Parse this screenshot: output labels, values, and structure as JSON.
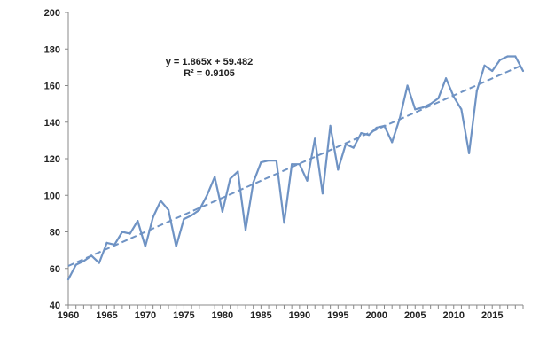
{
  "chart_data": {
    "type": "line",
    "title": "",
    "xlabel": "",
    "ylabel": "",
    "xlim": [
      1960,
      2019
    ],
    "ylim": [
      40,
      200
    ],
    "x_ticks": [
      1960,
      1965,
      1970,
      1975,
      1980,
      1985,
      1990,
      1995,
      2000,
      2005,
      2010,
      2015
    ],
    "y_ticks": [
      40,
      60,
      80,
      100,
      120,
      140,
      160,
      180,
      200
    ],
    "grid": false,
    "legend": "none",
    "series": [
      {
        "style": "solid",
        "color": "#6f93c4",
        "x": [
          1960,
          1961,
          1962,
          1963,
          1964,
          1965,
          1966,
          1967,
          1968,
          1969,
          1970,
          1971,
          1972,
          1973,
          1974,
          1975,
          1976,
          1977,
          1978,
          1979,
          1980,
          1981,
          1982,
          1983,
          1984,
          1985,
          1986,
          1987,
          1988,
          1989,
          1990,
          1991,
          1992,
          1993,
          1994,
          1995,
          1996,
          1997,
          1998,
          1999,
          2000,
          2001,
          2002,
          2003,
          2004,
          2005,
          2006,
          2007,
          2008,
          2009,
          2010,
          2011,
          2012,
          2013,
          2014,
          2015,
          2016,
          2017,
          2018,
          2019
        ],
        "y": [
          54,
          62,
          64,
          67,
          63,
          74,
          73,
          80,
          79,
          86,
          72,
          88,
          97,
          92,
          72,
          87,
          89,
          92,
          100,
          110,
          91,
          109,
          113,
          81,
          107,
          118,
          119,
          119,
          85,
          117,
          117,
          108,
          131,
          101,
          138,
          114,
          128,
          126,
          134,
          133,
          137,
          138,
          129,
          142,
          160,
          147,
          148,
          150,
          153,
          164,
          154,
          147,
          123,
          157,
          171,
          168,
          174,
          176,
          176,
          168
        ]
      },
      {
        "style": "dashed",
        "color": "#6f93c4",
        "x": [
          1960,
          2019
        ],
        "y": [
          61.35,
          171.38
        ]
      }
    ],
    "annotations": {
      "equation": "y = 1.865x + 59.482",
      "r_squared": "R² = 0.9105"
    }
  }
}
